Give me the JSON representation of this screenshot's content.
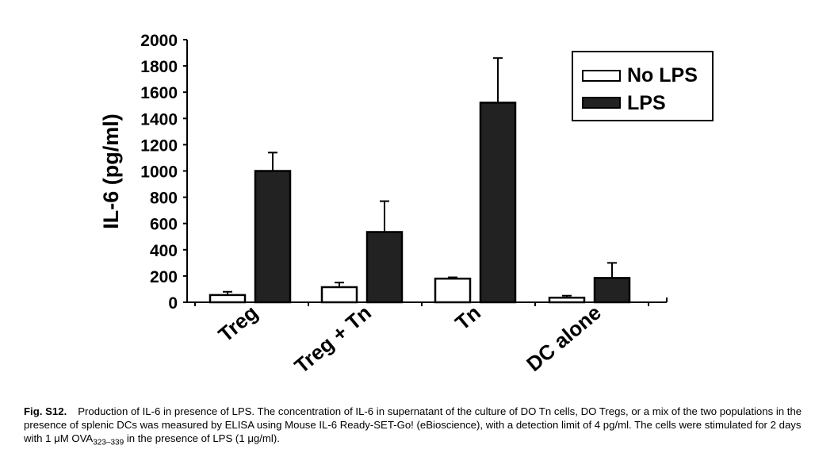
{
  "chart_data": {
    "type": "bar",
    "title": "",
    "xlabel": "",
    "ylabel": "IL-6 (pg/ml)",
    "ylim": [
      0,
      2000
    ],
    "yticks": [
      0,
      200,
      400,
      600,
      800,
      1000,
      1200,
      1400,
      1600,
      1800,
      2000
    ],
    "categories": [
      "Treg",
      "Treg + Tn",
      "Tn",
      "DC alone"
    ],
    "series": [
      {
        "name": "No LPS",
        "values": [
          55,
          115,
          180,
          35
        ],
        "errors": [
          25,
          35,
          10,
          15
        ],
        "color": "#ffffff"
      },
      {
        "name": "LPS",
        "values": [
          1000,
          535,
          1520,
          185
        ],
        "errors": [
          140,
          235,
          340,
          115
        ],
        "color": "#222222"
      }
    ],
    "legend_position": "top-right",
    "grid": false
  },
  "caption": {
    "label": "Fig. S12.",
    "text_before_sub": "Production of IL-6 in presence of LPS. The concentration of IL-6 in supernatant of the culture of DO Tn cells, DO Tregs, or a mix of the two populations in the presence of splenic DCs was measured by ELISA using Mouse IL-6 Ready-SET-Go! (eBioscience), with a detection limit of 4 pg/ml. The cells were stimulated for 2 days with 1 μM OVA",
    "subscript": "323–339",
    "text_after_sub": " in the presence of LPS (1 μg/ml)."
  }
}
